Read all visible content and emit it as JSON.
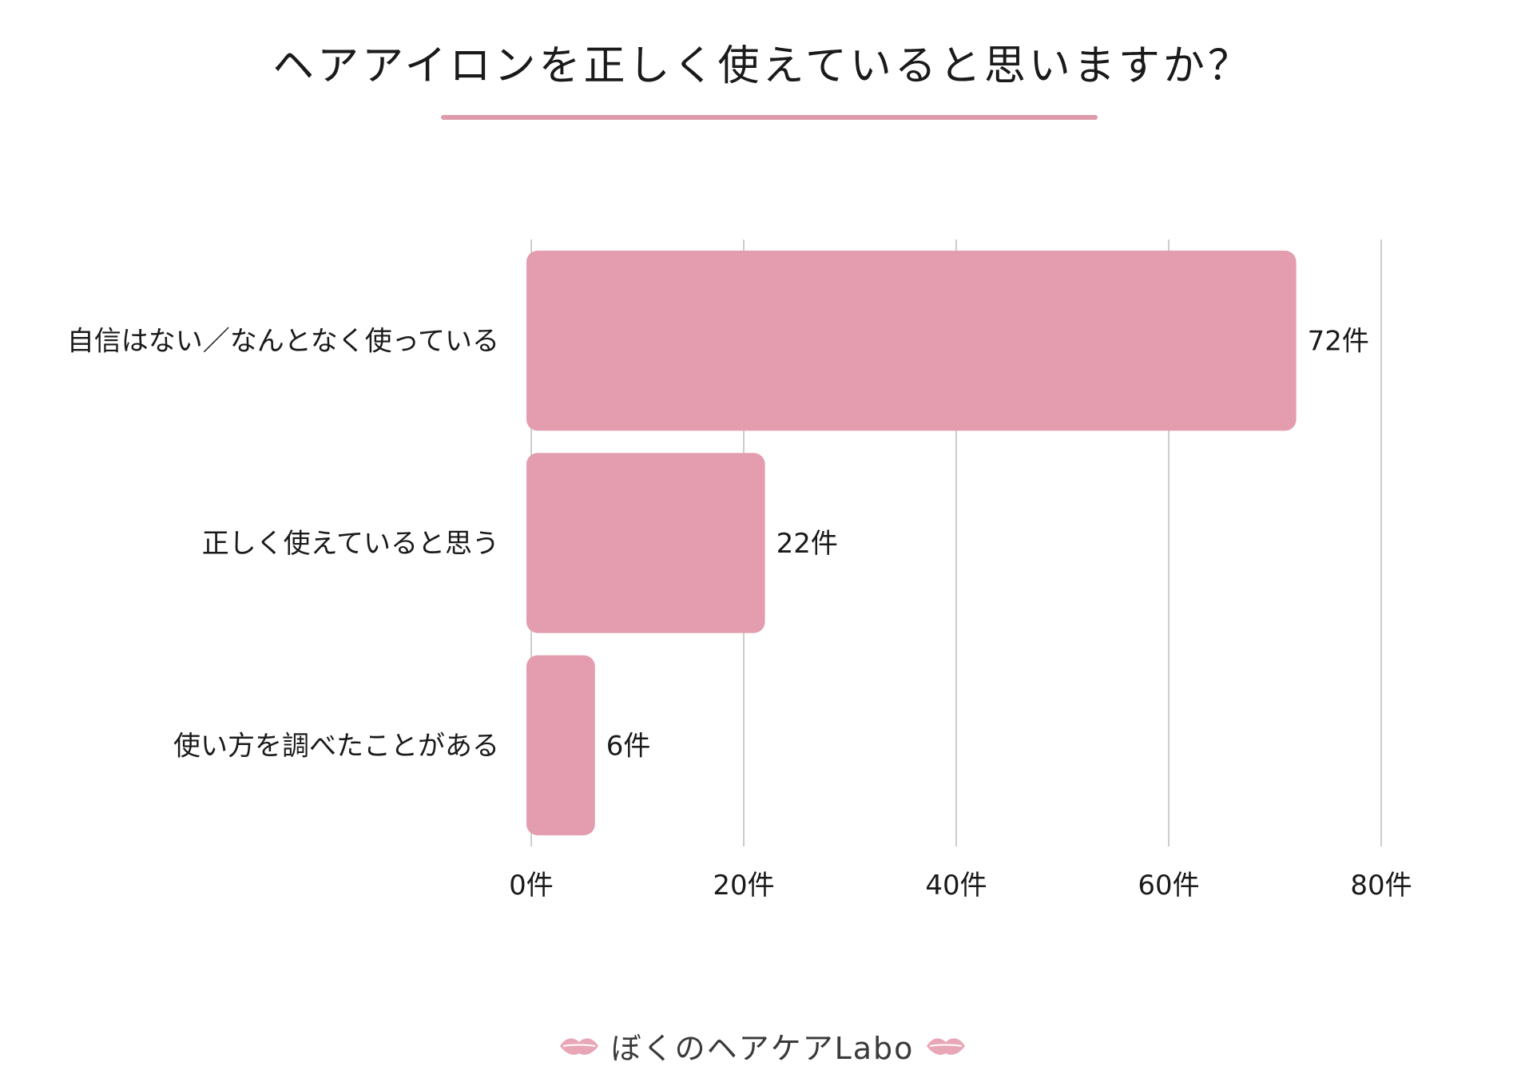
{
  "title": "ヘアアイロンを正しく使えていると思いますか？",
  "footer": {
    "brand": "ぼくのヘアケアLabo",
    "icons": [
      "lips-icon",
      "lips-icon"
    ]
  },
  "chart_data": {
    "type": "bar",
    "orientation": "horizontal",
    "title": "ヘアアイロンを正しく使えていると思いますか？",
    "categories": [
      "自信はない／なんとなく使っている",
      "正しく使えていると思う",
      "使い方を調べたことがある"
    ],
    "values": [
      72,
      22,
      6
    ],
    "value_labels": [
      "72件",
      "22件",
      "6件"
    ],
    "xlim": [
      0,
      80
    ],
    "x_ticks": [
      0,
      20,
      40,
      60,
      80
    ],
    "x_tick_labels": [
      "0件",
      "20件",
      "40件",
      "60件",
      "80件"
    ],
    "grid": "vertical",
    "legend": "none",
    "colors": {
      "bar": "#e39dae",
      "grid": "#cccccc",
      "underline": "#dc9aab",
      "lips": "#e8a6b6"
    }
  }
}
